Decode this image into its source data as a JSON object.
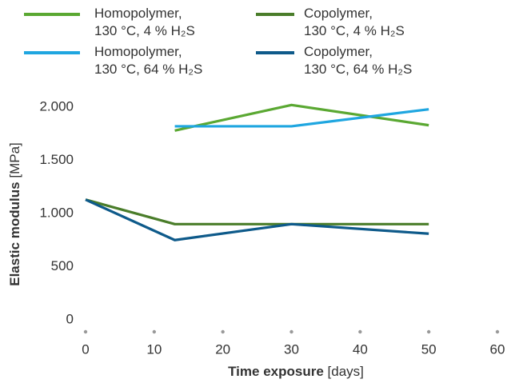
{
  "chart_data": {
    "type": "line",
    "xlabel": "Time exposure",
    "xlabel_unit": "[days]",
    "ylabel": "Elastic modulus",
    "ylabel_unit": "[MPa]",
    "xlim": [
      0,
      60
    ],
    "xticks": [
      0,
      10,
      20,
      30,
      40,
      50,
      60
    ],
    "ylim": [
      0,
      2000
    ],
    "yticks": [
      0,
      500,
      {
        "value": 1000,
        "label": "1.000"
      },
      {
        "value": 1500,
        "label": "1.500"
      },
      {
        "value": 2000,
        "label": "2.000"
      }
    ],
    "grid": false,
    "series": [
      {
        "name": "Homopolymer, 130 °C, 4 % H₂S",
        "color": "#5aa832",
        "x": [
          13,
          30,
          50
        ],
        "values": [
          1780,
          2020,
          1830
        ]
      },
      {
        "name": "Copolymer, 130 °C, 4 % H₂S",
        "color": "#4a7d2a",
        "x": [
          0,
          13,
          30,
          50
        ],
        "values": [
          1130,
          900,
          900,
          900
        ]
      },
      {
        "name": "Homopolymer, 130 °C, 64 % H₂S",
        "color": "#1fa6e0",
        "x": [
          13,
          30,
          50
        ],
        "values": [
          1820,
          1820,
          1980
        ]
      },
      {
        "name": "Copolymer, 130 °C, 64 % H₂S",
        "color": "#0e5a8a",
        "x": [
          0,
          13,
          30,
          50
        ],
        "values": [
          1130,
          750,
          900,
          810
        ]
      }
    ]
  }
}
